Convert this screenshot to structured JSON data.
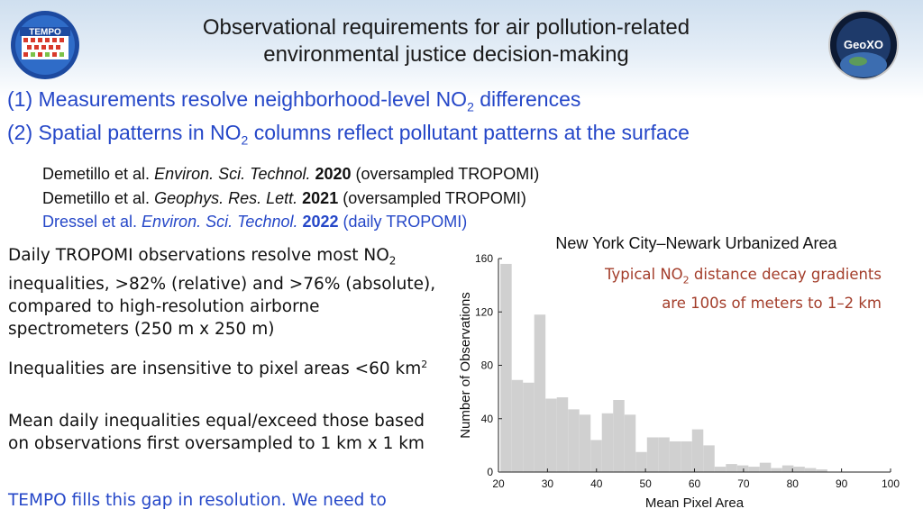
{
  "header": {
    "title_line1": "Observational requirements for air pollution-related",
    "title_line2": "environmental justice decision-making",
    "left_logo": "TEMPO",
    "right_logo": "GeoXO"
  },
  "requirements": {
    "r1_prefix": "(1) Measurements resolve neighborhood-level NO",
    "r1_sub": "2",
    "r1_suffix": " differences",
    "r2_prefix": "(2) Spatial patterns in NO",
    "r2_sub": "2",
    "r2_suffix": " columns reflect pollutant patterns at the surface"
  },
  "references": [
    {
      "authors": "Demetillo et al. ",
      "journal": "Environ. Sci. Technol.",
      "year": " 2020",
      "note": " (oversampled TROPOMI)"
    },
    {
      "authors": "Demetillo et al. ",
      "journal": "Geophys. Res. Lett.",
      "year": " 2021",
      "note": " (oversampled TROPOMI)"
    },
    {
      "authors": "Dressel et al. ",
      "journal": "Environ. Sci. Technol.",
      "year": " 2022",
      "note": " (daily TROPOMI)"
    }
  ],
  "bullets": {
    "b1_prefix": "Daily TROPOMI observations resolve most NO",
    "b1_sub": "2",
    "b1_suffix": " inequalities, >82% (relative) and >76% (absolute), compared to high-resolution airborne  spectrometers (250 m x 250 m)",
    "b2_prefix": "Inequalities are insensitive to pixel areas <60 km",
    "b2_sup": "2",
    "b3": "Mean daily inequalities equal/exceed those based on observations first oversampled to 1 km x 1 km",
    "b4": "TEMPO fills this gap in resolution. We need to"
  },
  "chart_title": "New York City–Newark Urbanized Area",
  "annotation": {
    "line1_prefix": "Typical NO",
    "line1_sub": "2",
    "line1_suffix": " distance decay gradients",
    "line2": "are 100s of meters to 1–2 km"
  },
  "chart_data": {
    "type": "bar",
    "xlabel": "Mean Pixel Area",
    "ylabel": "Number of Observations",
    "xlim": [
      20,
      100
    ],
    "ylim": [
      0,
      160
    ],
    "xticks": [
      20,
      30,
      40,
      50,
      60,
      70,
      80,
      90,
      100
    ],
    "yticks": [
      0,
      40,
      80,
      120,
      160
    ],
    "bin_width": 2.3,
    "bin_start": 20.4,
    "values": [
      156,
      69,
      67,
      118,
      55,
      56,
      47,
      43,
      24,
      44,
      54,
      43,
      15,
      26,
      26,
      23,
      23,
      32,
      20,
      4,
      6,
      5,
      4,
      7,
      3,
      5,
      4,
      3,
      2
    ],
    "bar_color": "#d0d0d0",
    "grid": false
  },
  "colors": {
    "blue_text": "#2547c8",
    "annotation": "#a33d2a",
    "bars": "#d0d0d0"
  }
}
